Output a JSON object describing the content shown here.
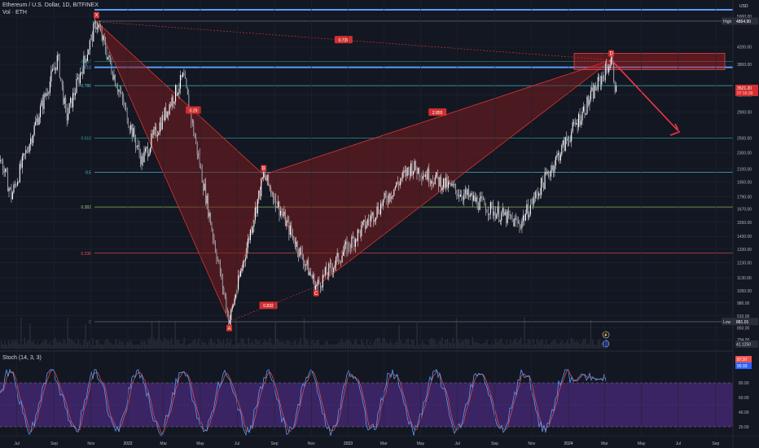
{
  "header": {
    "symbol": "Ethereum / U.S. Dollar, 1D, BITFINEX",
    "volume_label": "Vol · ETH",
    "currency": "USD",
    "stoch_label": "Stoch (14, 3, 3)"
  },
  "colors": {
    "background": "#131722",
    "candle_up": "#ffffff",
    "candle_down": "#ffffff",
    "pattern_fill": "#7a1c1f",
    "pattern_line": "#e53935",
    "blue_line": "#5b9cf6",
    "arrow": "#f23645",
    "stoch_band": "#4a2a7a",
    "stoch_k": "#5b9cf6",
    "stoch_d": "#ef5350"
  },
  "price_scale": {
    "ticks": [
      "5600",
      "5000.00",
      "4200.00",
      "3800.00",
      "3200.00",
      "2900.00",
      "2500.00",
      "2300.00",
      "2100.00",
      "1950.00",
      "1790.00",
      "1670.00",
      "1550.00",
      "1430.00",
      "1330.00",
      "1230.00",
      "1130.00",
      "1050.00",
      "980.00",
      "910.00",
      "850.00",
      "794.00"
    ],
    "high_label": "High",
    "high_value": "4864.90",
    "low_label": "Low",
    "low_value": "881.01",
    "last_price": "3521.20",
    "countdown": "07:16:39",
    "bottom_value": "41.1250"
  },
  "stoch_scale": {
    "ticks": [
      "80.00",
      "60.00",
      "40.00",
      "20.00"
    ],
    "k_value": "90.93",
    "d_value": "87.97"
  },
  "time_axis": [
    "Jul",
    "Sep",
    "Nov",
    "2022",
    "Mar",
    "May",
    "Jul",
    "Sep",
    "Nov",
    "2023",
    "Mar",
    "May",
    "Jul",
    "Sep",
    "Nov",
    "2024",
    "Mar",
    "May",
    "Jul",
    "Sep"
  ],
  "fib_levels": [
    {
      "label": "1",
      "value": 5600
    },
    {
      "label": "0.887",
      "value": 3870
    },
    {
      "label": "0.786",
      "value": 3370
    },
    {
      "label": "0.618",
      "value": 2500
    },
    {
      "label": "0.5",
      "value": 2060
    },
    {
      "label": "0.382",
      "value": 1690
    },
    {
      "label": "0.236",
      "value": 1300
    },
    {
      "label": "0",
      "value": 880
    }
  ],
  "blue_level_label": "0.618",
  "pattern": {
    "points": [
      {
        "label": "X",
        "time": "2021-11-10",
        "price": 4850
      },
      {
        "label": "A",
        "time": "2022-06-18",
        "price": 881
      },
      {
        "label": "B",
        "time": "2022-08-14",
        "price": 2030
      },
      {
        "label": "C",
        "time": "2022-11-09",
        "price": 1075
      },
      {
        "label": "D",
        "time": "2024-03-12",
        "price": 3900
      }
    ],
    "ratios": [
      {
        "text": "0.739",
        "leg": "XD"
      },
      {
        "text": "0.29",
        "leg": "XB"
      },
      {
        "text": "2.855",
        "leg": "BD"
      },
      {
        "text": "0.832",
        "leg": "AC"
      }
    ]
  },
  "chart_data": {
    "type": "candlestick",
    "title": "Ethereum / U.S. Dollar, 1D, BITFINEX",
    "ylabel": "USD",
    "y_scale": "log",
    "ylim": [
      770,
      5900
    ],
    "x_range": [
      "2021-05-25",
      "2024-10-22"
    ],
    "series": [
      {
        "name": "ETH price",
        "x": [
          "2021-06",
          "2021-07",
          "2021-08",
          "2021-09",
          "2021-10",
          "2021-11",
          "2021-12",
          "2022-01",
          "2022-02",
          "2022-03",
          "2022-04",
          "2022-05",
          "2022-06",
          "2022-07",
          "2022-08",
          "2022-09",
          "2022-10",
          "2022-11",
          "2022-12",
          "2023-01",
          "2023-02",
          "2023-03",
          "2023-04",
          "2023-05",
          "2023-06",
          "2023-07",
          "2023-08",
          "2023-09",
          "2023-10",
          "2023-11",
          "2023-12",
          "2024-01",
          "2024-02",
          "2024-03"
        ],
        "values": [
          2300,
          2000,
          3200,
          3000,
          4100,
          4700,
          3900,
          3000,
          2800,
          3300,
          2900,
          2000,
          1100,
          1400,
          1700,
          1330,
          1330,
          1200,
          1200,
          1550,
          1650,
          1750,
          1900,
          1850,
          1850,
          1900,
          1700,
          1620,
          1750,
          2050,
          2300,
          2350,
          3300,
          3700
        ]
      }
    ],
    "stochastic": {
      "name": "Stoch (14, 3, 3)",
      "ylim": [
        0,
        100
      ],
      "bands": [
        20,
        80
      ]
    }
  }
}
